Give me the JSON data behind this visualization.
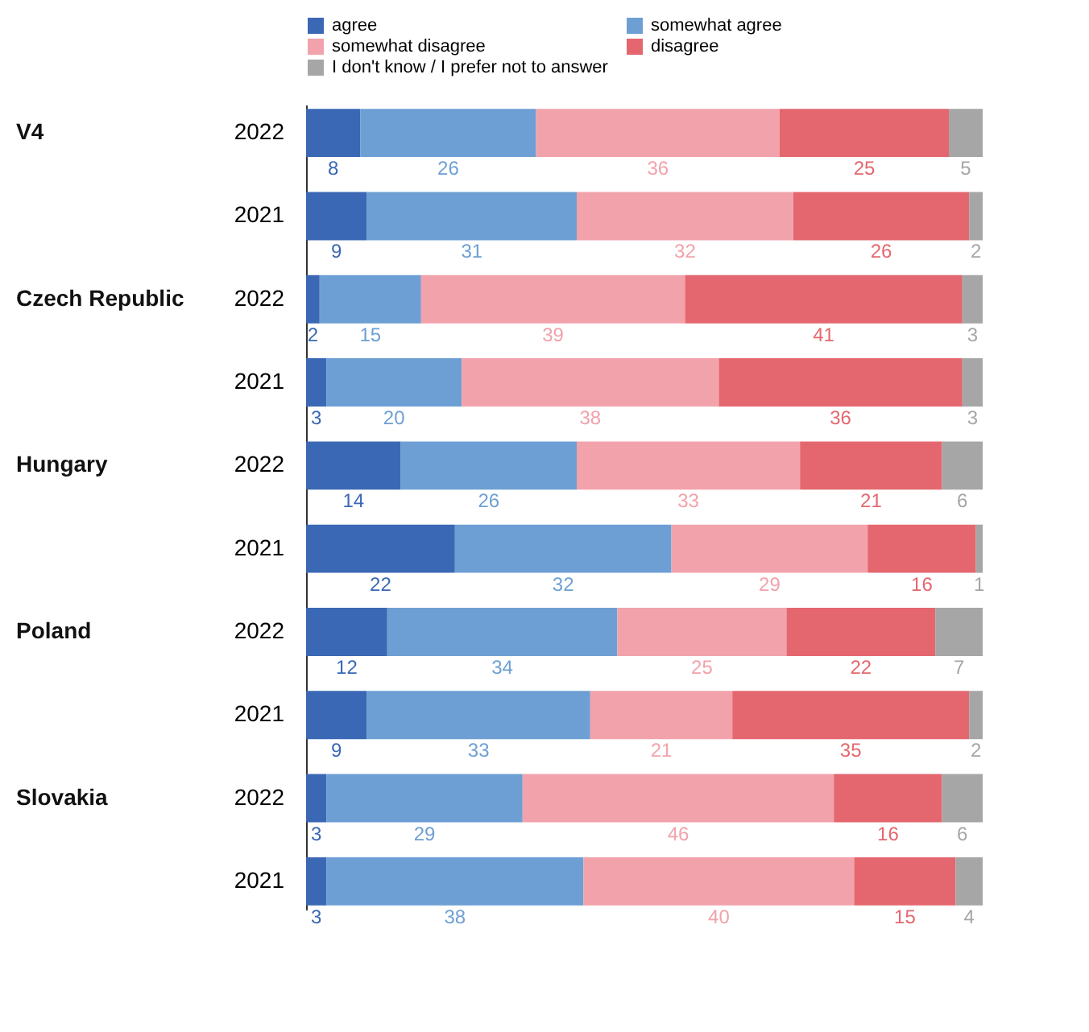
{
  "chart_data": {
    "type": "bar",
    "orientation": "horizontal",
    "stacked": true,
    "data_labels": true,
    "legend": "top",
    "tick_labels": "y",
    "categories": [
      "2022",
      "2021",
      "2022",
      "2021",
      "2022",
      "2021",
      "2022",
      "2021",
      "2022",
      "2021"
    ],
    "annotations": [
      "V4",
      "Czech Republic",
      "Hungary",
      "Poland",
      "Slovakia"
    ],
    "series": [
      {
        "name": "agree",
        "color": "#3a68b4",
        "values": [
          8,
          9,
          2,
          3,
          14,
          22,
          12,
          9,
          3,
          3
        ]
      },
      {
        "name": "somewhat agree",
        "color": "#6d9fd4",
        "values": [
          26,
          31,
          15,
          20,
          26,
          32,
          34,
          33,
          29,
          38
        ]
      },
      {
        "name": "somewhat disagree",
        "color": "#f2a2ab",
        "values": [
          36,
          32,
          39,
          38,
          33,
          29,
          25,
          21,
          46,
          40
        ]
      },
      {
        "name": "disagree",
        "color": "#e4676f",
        "values": [
          25,
          26,
          41,
          36,
          21,
          16,
          22,
          35,
          16,
          15
        ]
      },
      {
        "name": "I don't know / I prefer not to answer",
        "color": "#a6a6a6",
        "values": [
          5,
          2,
          3,
          3,
          6,
          1,
          7,
          2,
          6,
          4
        ]
      }
    ]
  }
}
